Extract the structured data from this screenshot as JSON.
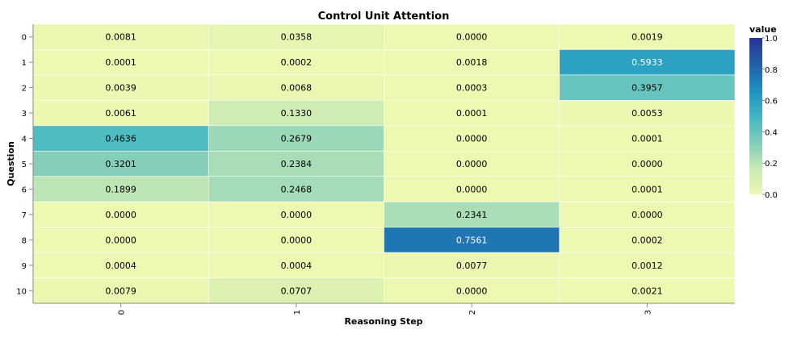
{
  "chart_data": {
    "type": "heatmap",
    "title": "Control Unit Attention",
    "xlabel": "Reasoning Step",
    "ylabel": "Question",
    "x_categories": [
      "0",
      "1",
      "2",
      "3"
    ],
    "y_categories": [
      "0",
      "1",
      "2",
      "3",
      "4",
      "5",
      "6",
      "7",
      "8",
      "9",
      "10"
    ],
    "values": [
      [
        "0.0081",
        "0.0358",
        "0.0000",
        "0.0019"
      ],
      [
        "0.0001",
        "0.0002",
        "0.0018",
        "0.5933"
      ],
      [
        "0.0039",
        "0.0068",
        "0.0003",
        "0.3957"
      ],
      [
        "0.0061",
        "0.1330",
        "0.0001",
        "0.0053"
      ],
      [
        "0.4636",
        "0.2679",
        "0.0000",
        "0.0001"
      ],
      [
        "0.3201",
        "0.2384",
        "0.0000",
        "0.0000"
      ],
      [
        "0.1899",
        "0.2468",
        "0.0000",
        "0.0001"
      ],
      [
        "0.0000",
        "0.0000",
        "0.2341",
        "0.0000"
      ],
      [
        "0.0000",
        "0.0000",
        "0.7561",
        "0.0002"
      ],
      [
        "0.0004",
        "0.0004",
        "0.0077",
        "0.0012"
      ],
      [
        "0.0079",
        "0.0707",
        "0.0000",
        "0.0021"
      ]
    ],
    "legend": {
      "title": "value",
      "ticks": [
        "1.0",
        "0.8",
        "0.6",
        "0.4",
        "0.2",
        "0.0"
      ],
      "domain": [
        0,
        1
      ],
      "placement": "right"
    },
    "color_scheme": [
      "#edf8b1",
      "#c7e9b4",
      "#7fcdbb",
      "#41b6c4",
      "#1d91c0",
      "#225ea8",
      "#253494"
    ]
  }
}
